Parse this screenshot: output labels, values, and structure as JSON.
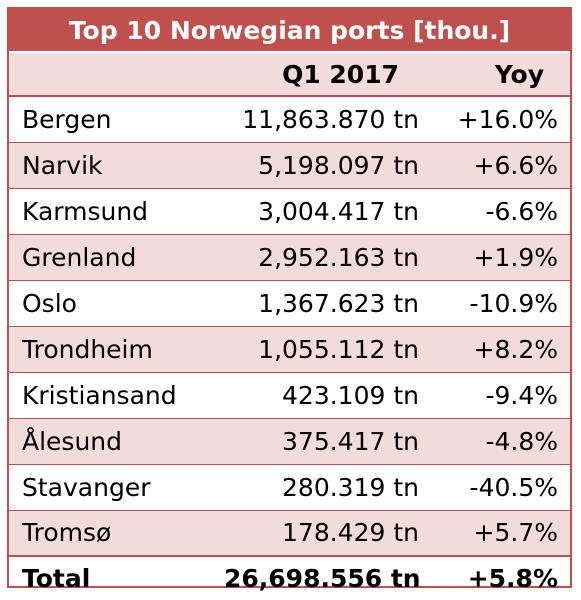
{
  "table": {
    "title": "Top 10 Norwegian ports [thou.]",
    "headers": {
      "port": "",
      "q1": "Q1 2017",
      "yoy": "Yoy"
    },
    "rows": [
      {
        "port": "Bergen",
        "q1": "11,863.870 tn",
        "yoy": "+16.0%"
      },
      {
        "port": "Narvik",
        "q1": "5,198.097 tn",
        "yoy": "+6.6%"
      },
      {
        "port": "Karmsund",
        "q1": "3,004.417 tn",
        "yoy": "-6.6%"
      },
      {
        "port": "Grenland",
        "q1": "2,952.163 tn",
        "yoy": "+1.9%"
      },
      {
        "port": "Oslo",
        "q1": "1,367.623 tn",
        "yoy": "-10.9%"
      },
      {
        "port": "Trondheim",
        "q1": "1,055.112 tn",
        "yoy": "+8.2%"
      },
      {
        "port": "Kristiansand",
        "q1": "423.109 tn",
        "yoy": "-9.4%"
      },
      {
        "port": "Ålesund",
        "q1": "375.417 tn",
        "yoy": "-4.8%"
      },
      {
        "port": "Stavanger",
        "q1": "280.319 tn",
        "yoy": "-40.5%"
      },
      {
        "port": "Tromsø",
        "q1": "178.429 tn",
        "yoy": "+5.7%"
      }
    ],
    "total": {
      "port": "Total",
      "q1": "26,698.556 tn",
      "yoy": "+5.8%"
    }
  },
  "colors": {
    "accent": "#c0504d",
    "band": "#f2dcdb",
    "title_text": "#ffffff",
    "text": "#000000"
  }
}
